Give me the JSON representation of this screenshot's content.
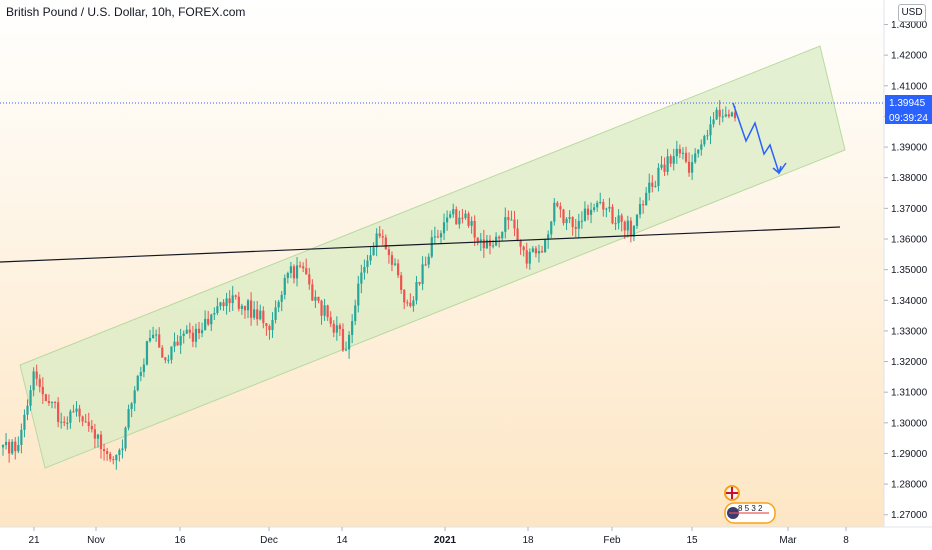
{
  "header": {
    "title": "British Pound / U.S. Dollar, 10h, FOREX.com"
  },
  "price_axis": {
    "currency": "USD",
    "last_price": "1.39945",
    "countdown": "09:39:24",
    "last_price_color": "#2962ff"
  },
  "colors": {
    "up_candle": "#26a69a",
    "down_candle": "#ef5350",
    "channel_fill": "#d9ecc4",
    "projection": "#2962ff",
    "support_line": "#131722"
  },
  "events": {
    "label": "8 5 3 2"
  },
  "chart_data": {
    "type": "candlestick",
    "title": "British Pound / U.S. Dollar, 10h, FOREX.com",
    "ylim": [
      1.266,
      1.438
    ],
    "y_ticks": [
      "1.27000",
      "1.28000",
      "1.29000",
      "1.30000",
      "1.31000",
      "1.32000",
      "1.33000",
      "1.34000",
      "1.35000",
      "1.36000",
      "1.37000",
      "1.38000",
      "1.39000",
      "1.40000",
      "1.41000",
      "1.42000",
      "1.43000"
    ],
    "x_tick_labels": [
      "21",
      "Nov",
      "16",
      "Dec",
      "14",
      "2021",
      "18",
      "Feb",
      "15",
      "Mar",
      "8"
    ],
    "approx_closes": [
      1.292,
      1.293,
      1.315,
      1.308,
      1.3,
      1.304,
      1.297,
      1.289,
      1.293,
      1.315,
      1.33,
      1.321,
      1.327,
      1.33,
      1.336,
      1.34,
      1.339,
      1.335,
      1.332,
      1.348,
      1.351,
      1.339,
      1.333,
      1.324,
      1.348,
      1.361,
      1.355,
      1.336,
      1.349,
      1.362,
      1.367,
      1.367,
      1.358,
      1.359,
      1.368,
      1.354,
      1.357,
      1.371,
      1.365,
      1.368,
      1.372,
      1.366,
      1.363,
      1.374,
      1.383,
      1.388,
      1.384,
      1.394,
      1.402,
      1.399
    ],
    "channel": {
      "upper": [
        [
          1.3085,
          1.3865
        ],
        [
          1.4155,
          1.4165
        ]
      ],
      "lower": [
        [
          1.2885,
          1.2955
        ],
        [
          1.3775,
          1.3855
        ]
      ]
    },
    "support_line": [
      1.3495,
      1.3605
    ],
    "projection": [
      1.399,
      1.3888,
      1.395,
      1.383,
      1.387,
      1.3775,
      1.3805
    ],
    "last_price": 1.39945
  }
}
